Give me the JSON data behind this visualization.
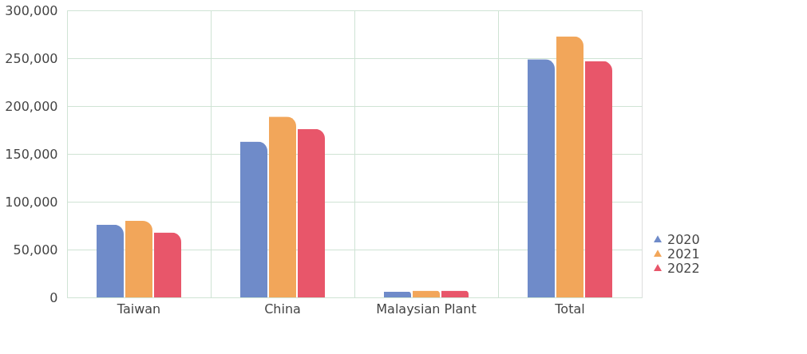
{
  "chart_data": {
    "type": "bar",
    "categories": [
      "Taiwan",
      "China",
      "Malaysian Plant",
      "Total"
    ],
    "series": [
      {
        "name": "2020",
        "color": "#6f8bc9",
        "values": [
          76000,
          163000,
          6000,
          249000
        ]
      },
      {
        "name": "2021",
        "color": "#f2a65a",
        "values": [
          80000,
          189000,
          7000,
          273000
        ]
      },
      {
        "name": "2022",
        "color": "#e8566a",
        "values": [
          68000,
          176000,
          7000,
          247000
        ]
      }
    ],
    "ylim": [
      0,
      300000
    ],
    "yticks": [
      0,
      {
        "value": 50000,
        "label": "50,000"
      },
      {
        "value": 100000,
        "label": "100,000"
      },
      {
        "value": 150000,
        "label": "150,000"
      },
      {
        "value": 200000,
        "label": "200,000"
      },
      {
        "value": 250000,
        "label": "250,000"
      },
      {
        "value": 300000,
        "label": "300,000"
      }
    ],
    "grid": true,
    "legend": "bottom right",
    "marker": "triangle"
  }
}
